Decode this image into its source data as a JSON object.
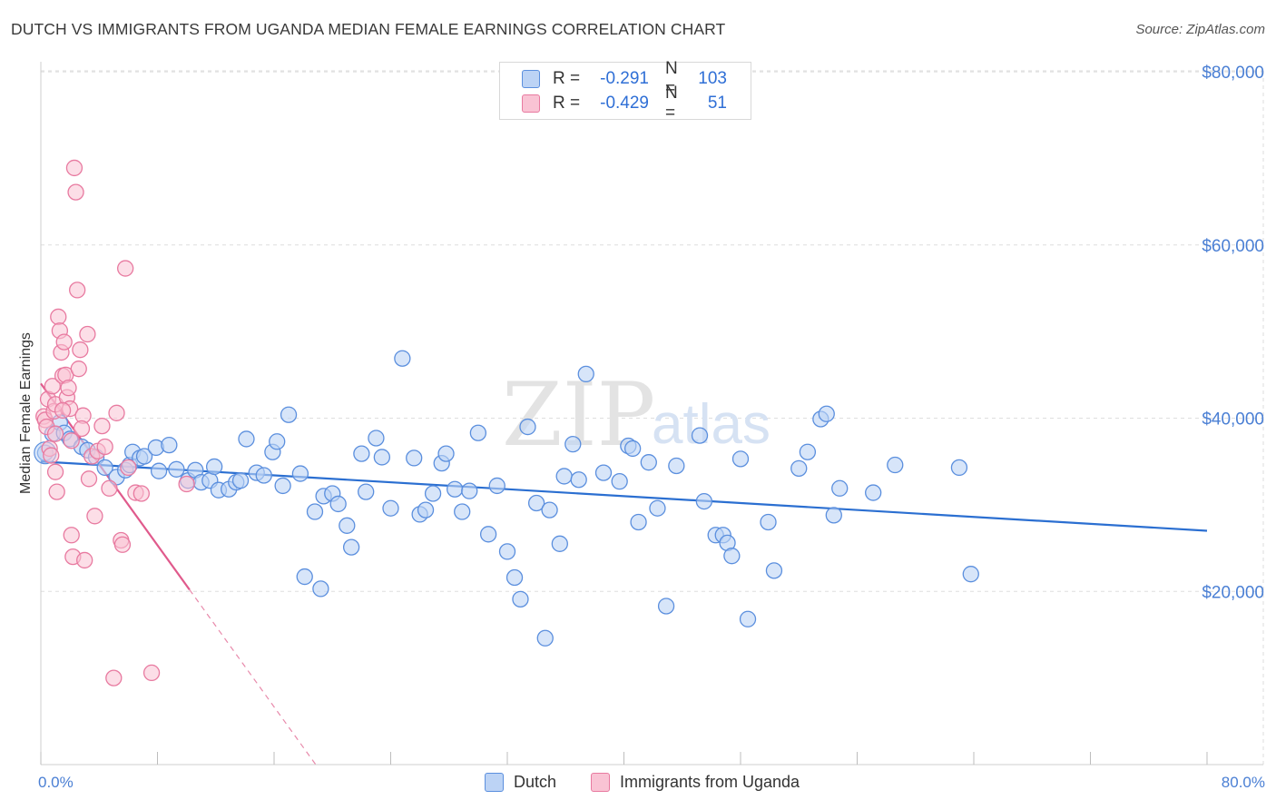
{
  "title": "DUTCH VS IMMIGRANTS FROM UGANDA MEDIAN FEMALE EARNINGS CORRELATION CHART",
  "source": "Source: ZipAtlas.com",
  "watermark": {
    "zip": "ZIP",
    "atlas": "atlas"
  },
  "legend": {
    "r_label": "R =",
    "n_label": "N =",
    "rows": [
      {
        "name": "Dutch",
        "r": "-0.291",
        "n": "103",
        "color": "#5b8fde",
        "fill": "#bcd3f5"
      },
      {
        "name": "Immigrants from Uganda",
        "r": "-0.429",
        "n": "51",
        "color": "#e87aa0",
        "fill": "#f9c3d4"
      }
    ]
  },
  "chart_data": {
    "type": "scatter",
    "title": "DUTCH VS IMMIGRANTS FROM UGANDA MEDIAN FEMALE EARNINGS CORRELATION CHART",
    "xlabel": "",
    "ylabel": "Median Female Earnings",
    "xlim": [
      0,
      80
    ],
    "ylim": [
      0,
      82000
    ],
    "x_tick_labels": [
      "0.0%",
      "80.0%"
    ],
    "y_ticks": [
      20000,
      40000,
      60000,
      80000
    ],
    "y_tick_labels": [
      "$20,000",
      "$40,000",
      "$60,000",
      "$80,000"
    ],
    "grid": true,
    "series": [
      {
        "name": "Dutch",
        "color": "#5b8fde",
        "points": [
          [
            0.3,
            36000
          ],
          [
            0.8,
            38200
          ],
          [
            1.3,
            39500
          ],
          [
            1.6,
            38300
          ],
          [
            2.0,
            37600
          ],
          [
            2.8,
            36700
          ],
          [
            3.2,
            36300
          ],
          [
            3.8,
            35500
          ],
          [
            4.4,
            34300
          ],
          [
            5.2,
            33200
          ],
          [
            5.8,
            34000
          ],
          [
            6.1,
            34600
          ],
          [
            6.3,
            36100
          ],
          [
            6.8,
            35400
          ],
          [
            7.1,
            35600
          ],
          [
            7.9,
            36600
          ],
          [
            8.1,
            33900
          ],
          [
            8.8,
            36900
          ],
          [
            9.3,
            34100
          ],
          [
            10.1,
            32800
          ],
          [
            10.6,
            34000
          ],
          [
            11.0,
            32600
          ],
          [
            11.6,
            32800
          ],
          [
            11.9,
            34400
          ],
          [
            12.2,
            31700
          ],
          [
            12.9,
            31800
          ],
          [
            13.4,
            32600
          ],
          [
            13.7,
            32800
          ],
          [
            14.1,
            37600
          ],
          [
            14.8,
            33700
          ],
          [
            15.3,
            33400
          ],
          [
            15.9,
            36100
          ],
          [
            16.2,
            37300
          ],
          [
            16.6,
            32200
          ],
          [
            17.0,
            40400
          ],
          [
            17.8,
            33600
          ],
          [
            18.1,
            21700
          ],
          [
            18.8,
            29200
          ],
          [
            19.2,
            20300
          ],
          [
            19.4,
            31000
          ],
          [
            20.0,
            31300
          ],
          [
            20.4,
            30100
          ],
          [
            21.0,
            27600
          ],
          [
            21.3,
            25100
          ],
          [
            22.0,
            35900
          ],
          [
            22.3,
            31500
          ],
          [
            23.0,
            37700
          ],
          [
            23.4,
            35500
          ],
          [
            24.0,
            29600
          ],
          [
            24.8,
            46900
          ],
          [
            25.6,
            35400
          ],
          [
            26.0,
            28900
          ],
          [
            26.4,
            29400
          ],
          [
            26.9,
            31300
          ],
          [
            27.5,
            34800
          ],
          [
            27.8,
            35900
          ],
          [
            28.4,
            31800
          ],
          [
            28.9,
            29200
          ],
          [
            29.4,
            31600
          ],
          [
            30.0,
            38300
          ],
          [
            30.7,
            26600
          ],
          [
            31.3,
            32200
          ],
          [
            32.0,
            24600
          ],
          [
            32.5,
            21600
          ],
          [
            32.9,
            19100
          ],
          [
            33.4,
            39000
          ],
          [
            34.0,
            30200
          ],
          [
            34.6,
            14600
          ],
          [
            34.9,
            29400
          ],
          [
            35.6,
            25500
          ],
          [
            35.9,
            33300
          ],
          [
            36.5,
            37000
          ],
          [
            36.9,
            32900
          ],
          [
            37.4,
            45100
          ],
          [
            38.6,
            33700
          ],
          [
            39.7,
            32700
          ],
          [
            40.3,
            36800
          ],
          [
            40.6,
            36500
          ],
          [
            41.0,
            28000
          ],
          [
            41.7,
            34900
          ],
          [
            42.3,
            29600
          ],
          [
            42.9,
            18300
          ],
          [
            43.6,
            34500
          ],
          [
            45.2,
            38000
          ],
          [
            45.5,
            30400
          ],
          [
            46.3,
            26500
          ],
          [
            46.8,
            26500
          ],
          [
            47.1,
            25600
          ],
          [
            47.4,
            24100
          ],
          [
            48.0,
            35300
          ],
          [
            48.5,
            16800
          ],
          [
            49.9,
            28000
          ],
          [
            50.3,
            22400
          ],
          [
            52.0,
            34200
          ],
          [
            52.6,
            36100
          ],
          [
            53.5,
            39900
          ],
          [
            53.9,
            40500
          ],
          [
            54.4,
            28800
          ],
          [
            54.8,
            31900
          ],
          [
            57.1,
            31400
          ],
          [
            58.6,
            34600
          ],
          [
            63.0,
            34300
          ],
          [
            63.8,
            22000
          ]
        ],
        "trendline": {
          "x": [
            0,
            80
          ],
          "y": [
            35000,
            27000
          ]
        }
      },
      {
        "name": "Immigrants from Uganda",
        "color": "#e87aa0",
        "points": [
          [
            0.2,
            40200
          ],
          [
            0.3,
            39800
          ],
          [
            0.4,
            39000
          ],
          [
            0.5,
            42200
          ],
          [
            0.6,
            36500
          ],
          [
            0.8,
            43700
          ],
          [
            0.9,
            40800
          ],
          [
            1.0,
            41600
          ],
          [
            1.0,
            38200
          ],
          [
            1.0,
            33800
          ],
          [
            1.1,
            31500
          ],
          [
            1.2,
            51700
          ],
          [
            1.3,
            50100
          ],
          [
            1.4,
            47600
          ],
          [
            1.5,
            44900
          ],
          [
            1.6,
            48800
          ],
          [
            1.7,
            45000
          ],
          [
            1.8,
            42400
          ],
          [
            1.9,
            43500
          ],
          [
            2.0,
            41100
          ],
          [
            2.1,
            37400
          ],
          [
            2.1,
            26500
          ],
          [
            2.2,
            24000
          ],
          [
            2.3,
            68900
          ],
          [
            2.4,
            66100
          ],
          [
            2.5,
            54800
          ],
          [
            2.6,
            45700
          ],
          [
            2.7,
            47900
          ],
          [
            2.9,
            40300
          ],
          [
            3.0,
            23600
          ],
          [
            3.2,
            49700
          ],
          [
            3.3,
            33000
          ],
          [
            3.5,
            35600
          ],
          [
            3.7,
            28700
          ],
          [
            3.9,
            36200
          ],
          [
            4.2,
            39100
          ],
          [
            4.4,
            36700
          ],
          [
            4.7,
            31900
          ],
          [
            5.0,
            10000
          ],
          [
            5.2,
            40600
          ],
          [
            5.5,
            25900
          ],
          [
            5.6,
            25400
          ],
          [
            5.8,
            57300
          ],
          [
            6.0,
            34300
          ],
          [
            6.5,
            31400
          ],
          [
            6.9,
            31300
          ],
          [
            7.6,
            10600
          ],
          [
            10.0,
            32400
          ],
          [
            0.7,
            35700
          ],
          [
            1.5,
            40900
          ],
          [
            2.8,
            38800
          ]
        ],
        "trendline": {
          "x": [
            0,
            19.5
          ],
          "y": [
            44000,
            -1500
          ],
          "solid_until_x": 10.2
        }
      }
    ]
  }
}
